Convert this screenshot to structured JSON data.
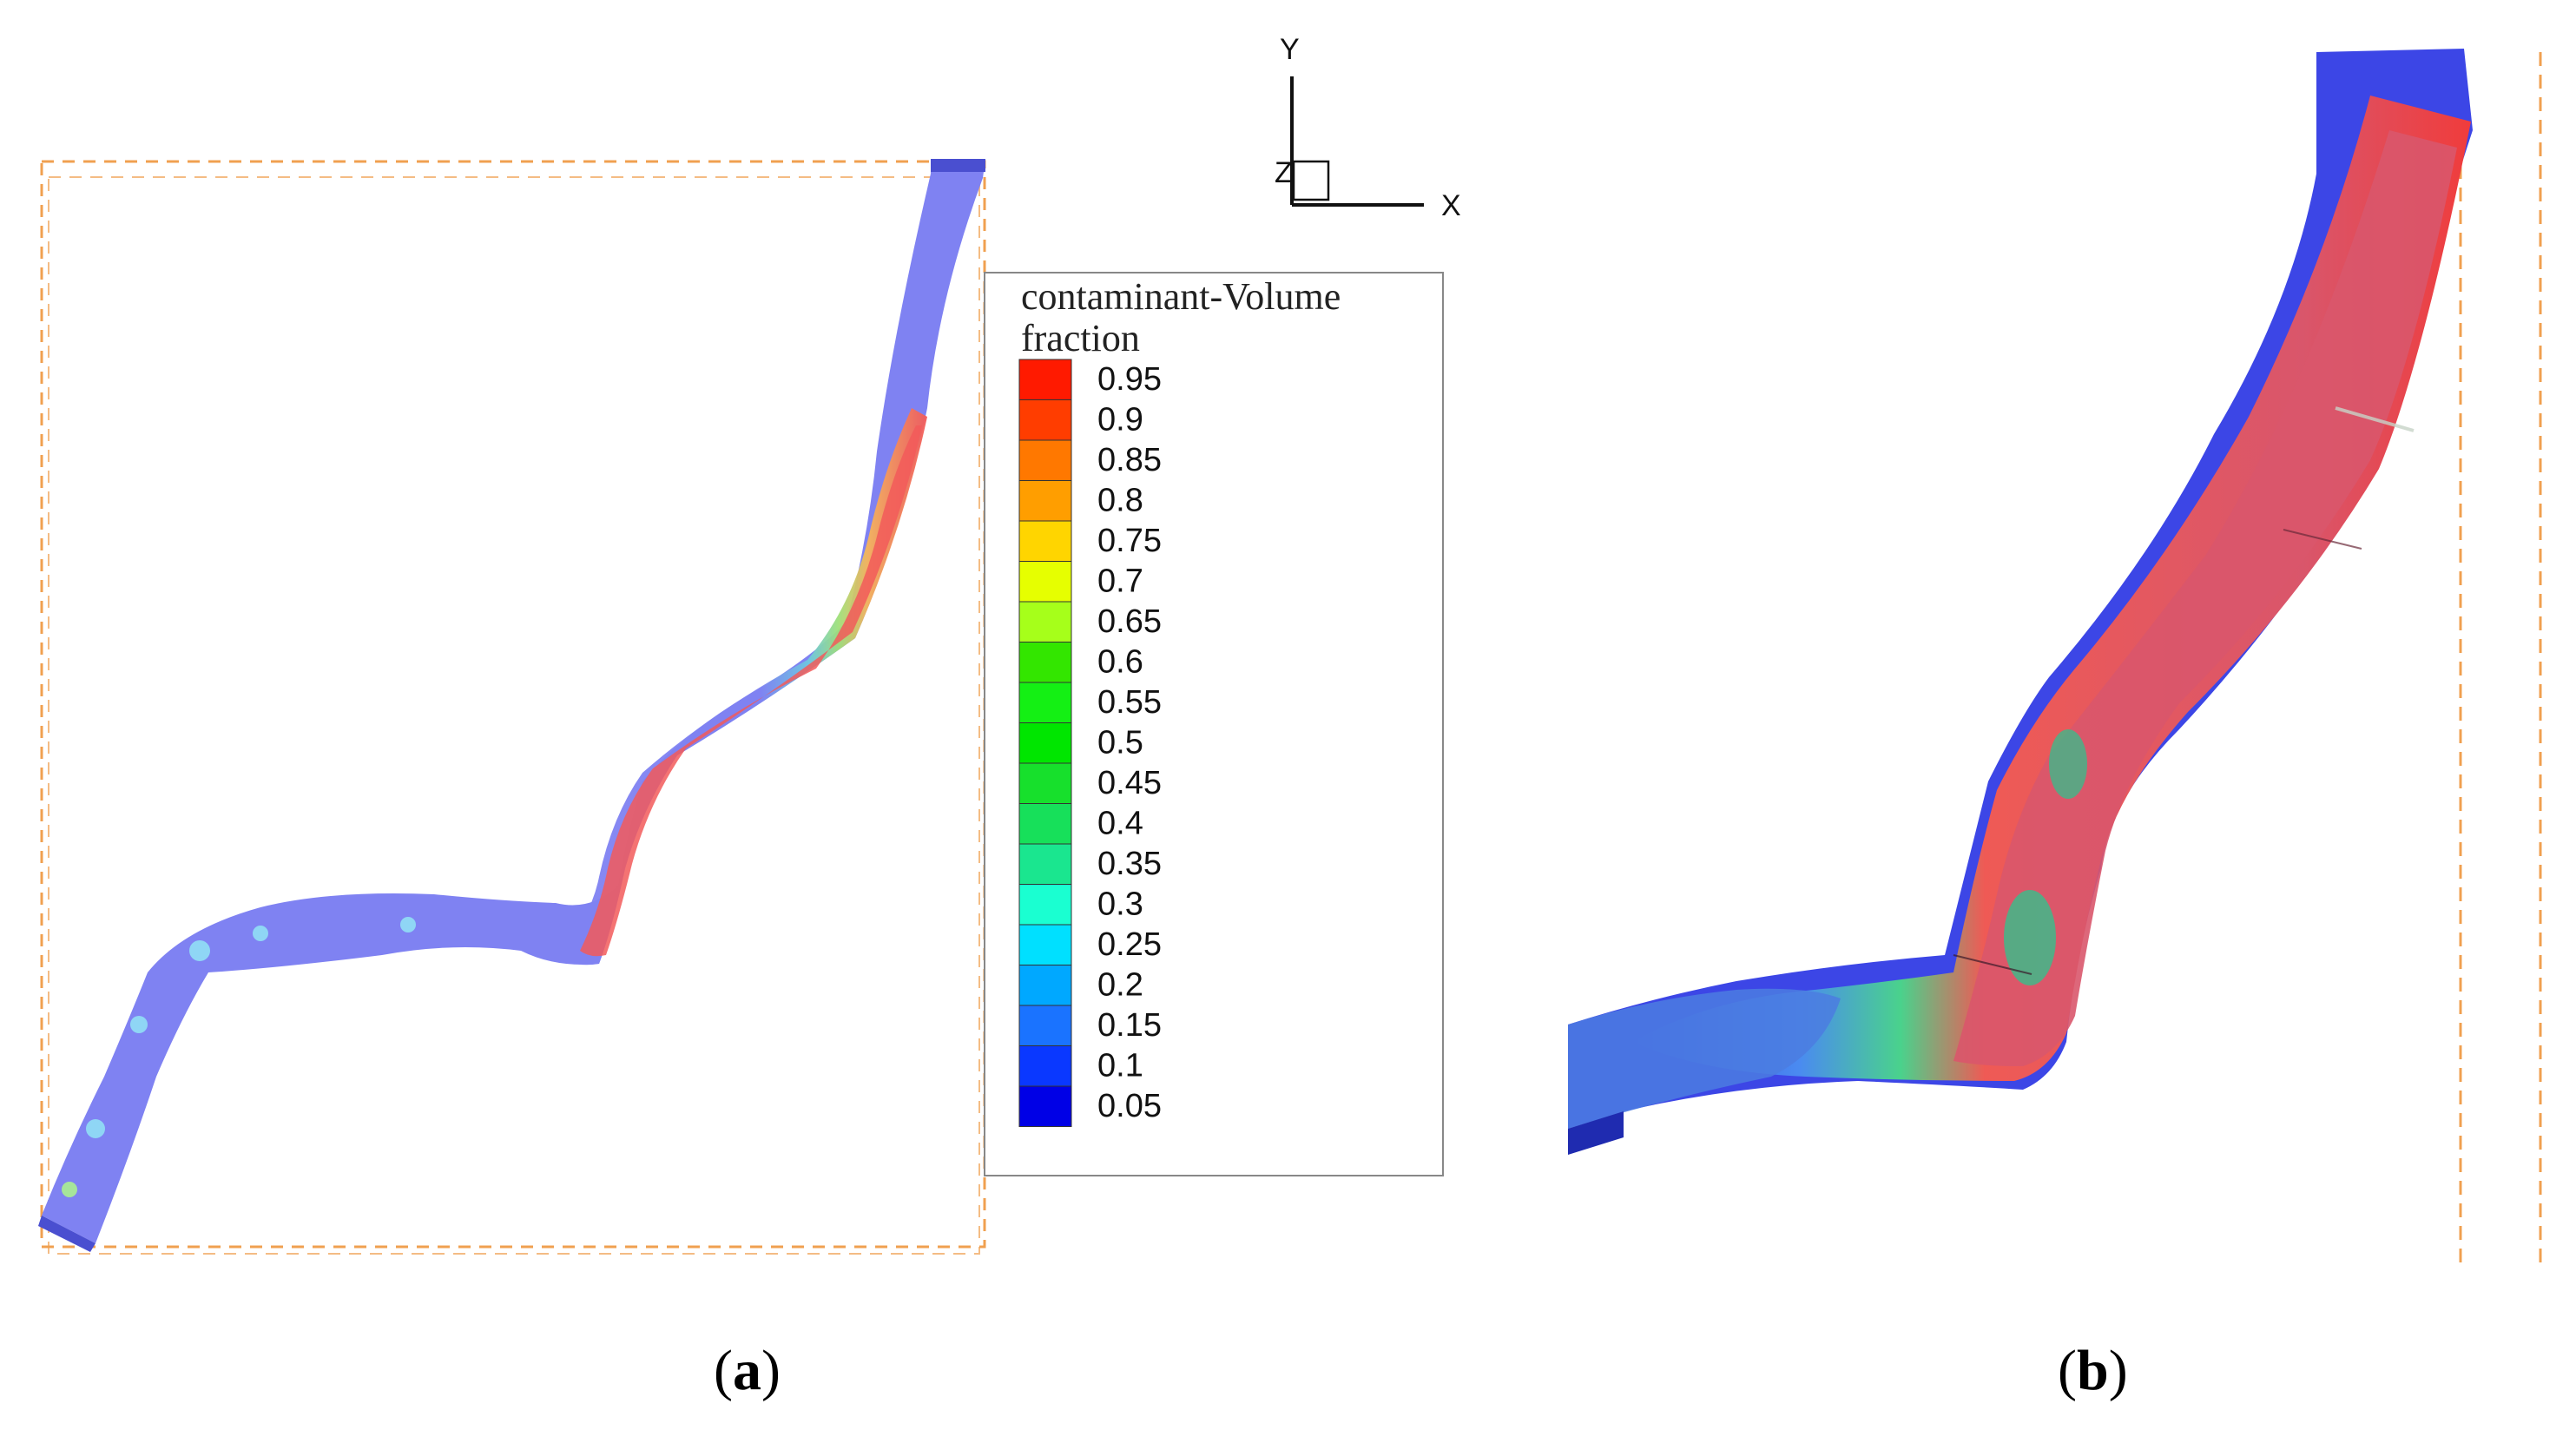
{
  "legend": {
    "title_line1": "contaminant-Volume",
    "title_line2": "fraction",
    "levels": [
      {
        "label": "0.95",
        "color": "#ff1a00"
      },
      {
        "label": "0.9",
        "color": "#ff3d00"
      },
      {
        "label": "0.85",
        "color": "#ff7800"
      },
      {
        "label": "0.8",
        "color": "#ff9e00"
      },
      {
        "label": "0.75",
        "color": "#ffd500"
      },
      {
        "label": "0.7",
        "color": "#e6ff00"
      },
      {
        "label": "0.65",
        "color": "#a6ff1a"
      },
      {
        "label": "0.6",
        "color": "#33e600"
      },
      {
        "label": "0.55",
        "color": "#14f014"
      },
      {
        "label": "0.5",
        "color": "#00e600"
      },
      {
        "label": "0.45",
        "color": "#17e02c"
      },
      {
        "label": "0.4",
        "color": "#17e05a"
      },
      {
        "label": "0.35",
        "color": "#1ae68f"
      },
      {
        "label": "0.3",
        "color": "#1affd1"
      },
      {
        "label": "0.25",
        "color": "#00e0ff"
      },
      {
        "label": "0.2",
        "color": "#00a8ff"
      },
      {
        "label": "0.15",
        "color": "#1a73ff"
      },
      {
        "label": "0.1",
        "color": "#0a38ff"
      },
      {
        "label": "0.05",
        "color": "#0000e6"
      }
    ]
  },
  "axes": {
    "y_label": "Y",
    "z_label": "Z",
    "x_label": "X"
  },
  "panels": {
    "a": {
      "paren_open": "(",
      "letter": "a",
      "paren_close": ")"
    },
    "b": {
      "paren_open": "(",
      "letter": "b",
      "paren_close": ")"
    }
  },
  "colors": {
    "domain_box": "#f0a050",
    "channel_blue": "#7f82f2",
    "plume_red": "#f05a5a",
    "deep_blue": "#3c46e6"
  }
}
